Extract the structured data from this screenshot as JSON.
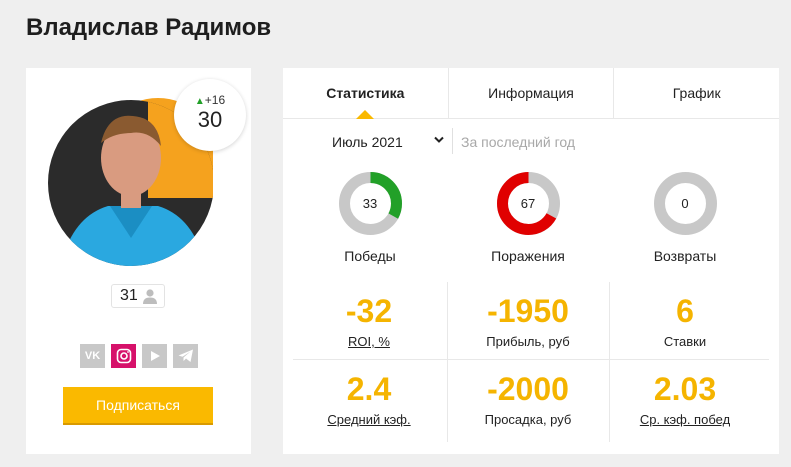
{
  "page": {
    "title": "Владислав Радимов"
  },
  "profile": {
    "rating_delta": "+16",
    "rating": "30",
    "followers": "31",
    "socials": [
      {
        "name": "vk",
        "label": "VK"
      },
      {
        "name": "instagram",
        "label": ""
      },
      {
        "name": "youtube",
        "label": ""
      },
      {
        "name": "telegram",
        "label": ""
      }
    ],
    "subscribe_label": "Подписаться",
    "colors": {
      "accent": "#fab900",
      "instagram": "#d6116a",
      "social_gray": "#c8c8c8"
    }
  },
  "stats": {
    "tabs": [
      "Статистика",
      "Информация",
      "График"
    ],
    "active_tab": 0,
    "period": {
      "selected": "Июль 2021",
      "placeholder": "За последний год"
    },
    "outcomes": [
      {
        "label": "Победы",
        "value": "33",
        "fraction": 0.33,
        "color": "#22a028"
      },
      {
        "label": "Поражения",
        "value": "67",
        "fraction": 0.67,
        "color": "#e00000"
      },
      {
        "label": "Возвраты",
        "value": "0",
        "fraction": 0,
        "color": "#c8c8c8"
      }
    ],
    "metrics": [
      {
        "value": "-32",
        "label": "ROI, %",
        "link": true
      },
      {
        "value": "-1950",
        "label": "Прибыль, руб",
        "link": false
      },
      {
        "value": "6",
        "label": "Ставки",
        "link": false
      },
      {
        "value": "2.4",
        "label": "Средний кэф.",
        "link": true
      },
      {
        "value": "-2000",
        "label": "Просадка, руб",
        "link": false
      },
      {
        "value": "2.03",
        "label": "Ср. кэф. побед",
        "link": true
      }
    ]
  }
}
